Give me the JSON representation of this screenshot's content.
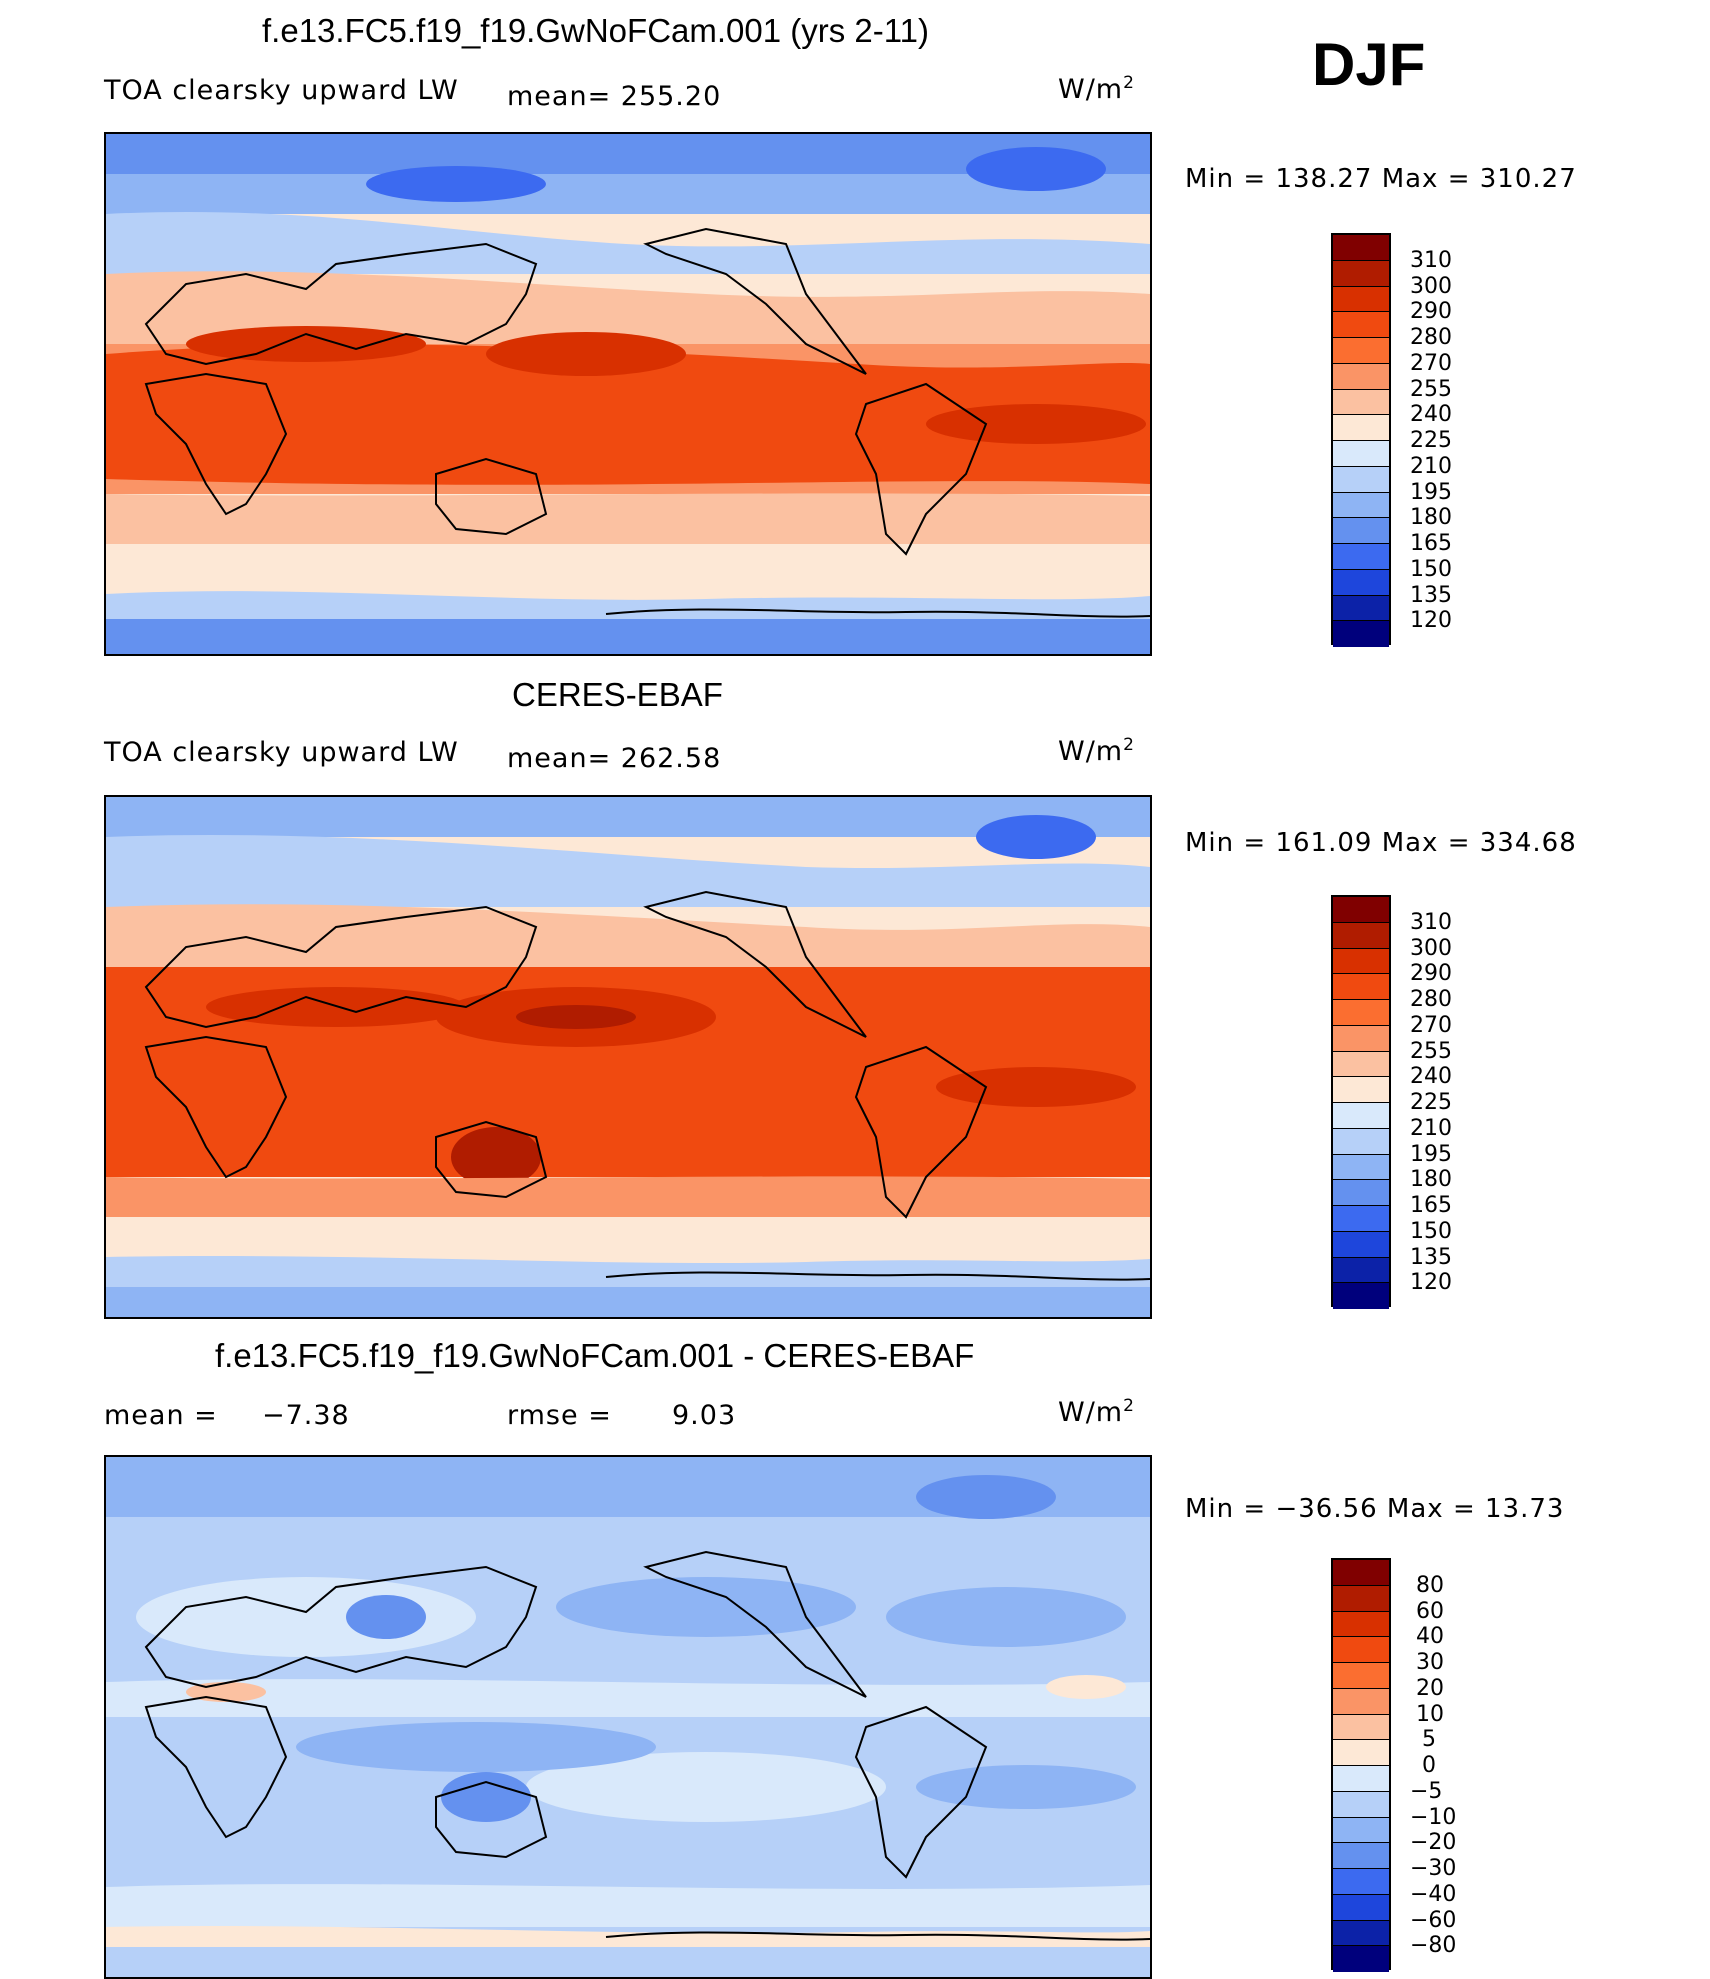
{
  "season": "DJF",
  "panels": [
    {
      "title": "f.e13.FC5.f19_f19.GwNoFCam.001 (yrs 2-11)",
      "left_label": "TOA clearsky upward LW",
      "mean_text": "mean= 255.20",
      "units_base": "W/m",
      "units_exp": "2",
      "minmax": "Min = 138.27 Max = 310.27",
      "colorbar_labels": [
        "310",
        "300",
        "290",
        "280",
        "270",
        "255",
        "240",
        "225",
        "210",
        "195",
        "180",
        "165",
        "150",
        "135",
        "120"
      ],
      "colors": [
        "#800000",
        "#b01c00",
        "#d83000",
        "#f04a10",
        "#fb6e30",
        "#fa9466",
        "#fbc1a1",
        "#fde8d6",
        "#d9e9fb",
        "#b6d0f8",
        "#8eb4f4",
        "#6491ef",
        "#3c6af0",
        "#1e46dc",
        "#0c22a8",
        "#00007c"
      ]
    },
    {
      "title": "CERES-EBAF",
      "left_label": "TOA clearsky upward LW",
      "mean_text": "mean= 262.58",
      "units_base": "W/m",
      "units_exp": "2",
      "minmax": "Min = 161.09 Max = 334.68",
      "colorbar_labels": [
        "310",
        "300",
        "290",
        "280",
        "270",
        "255",
        "240",
        "225",
        "210",
        "195",
        "180",
        "165",
        "150",
        "135",
        "120"
      ],
      "colors": [
        "#800000",
        "#b01c00",
        "#d83000",
        "#f04a10",
        "#fb6e30",
        "#fa9466",
        "#fbc1a1",
        "#fde8d6",
        "#d9e9fb",
        "#b6d0f8",
        "#8eb4f4",
        "#6491ef",
        "#3c6af0",
        "#1e46dc",
        "#0c22a8",
        "#00007c"
      ]
    },
    {
      "title": "f.e13.FC5.f19_f19.GwNoFCam.001 - CERES-EBAF",
      "mean_label": "mean =",
      "mean_value": "−7.38",
      "rmse_label": "rmse =",
      "rmse_value": "9.03",
      "units_base": "W/m",
      "units_exp": "2",
      "minmax": "Min = −36.56 Max =  13.73",
      "colorbar_labels": [
        "80",
        "60",
        "40",
        "30",
        "20",
        "10",
        "5",
        "0",
        "−5",
        "−10",
        "−20",
        "−30",
        "−40",
        "−60",
        "−80"
      ],
      "colors": [
        "#800000",
        "#b01c00",
        "#d83000",
        "#f04a10",
        "#fb6e30",
        "#fa9466",
        "#fbc1a1",
        "#fde8d6",
        "#d9e9fb",
        "#b6d0f8",
        "#8eb4f4",
        "#6491ef",
        "#3c6af0",
        "#1e46dc",
        "#0c22a8",
        "#00007c"
      ]
    }
  ]
}
